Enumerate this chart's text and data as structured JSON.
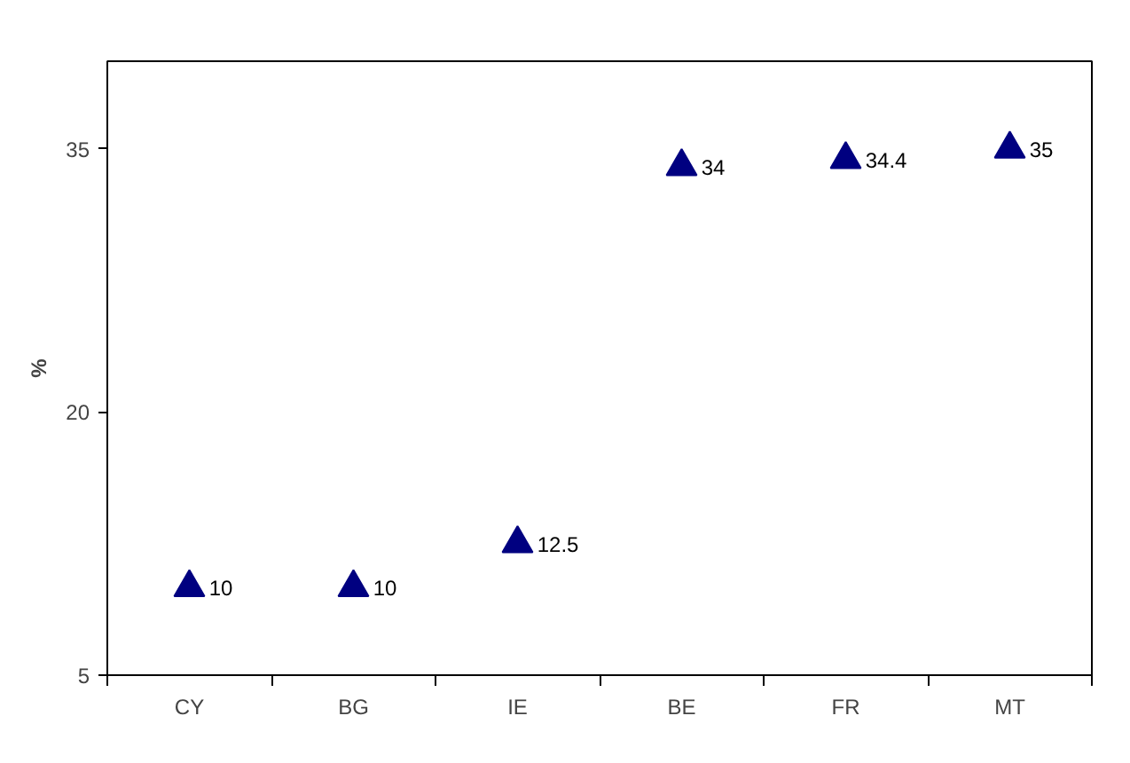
{
  "chart_data": {
    "type": "scatter",
    "ylabel": "%",
    "categories": [
      "CY",
      "BG",
      "IE",
      "BE",
      "FR",
      "MT"
    ],
    "series": [
      {
        "color": "#000080",
        "values": [
          10,
          10,
          12.5,
          34,
          34.4,
          35
        ]
      }
    ],
    "ylim": [
      5,
      40
    ],
    "yticks": [
      5,
      20,
      35
    ],
    "marker": "triangle",
    "data_labels": true,
    "grid": false
  }
}
